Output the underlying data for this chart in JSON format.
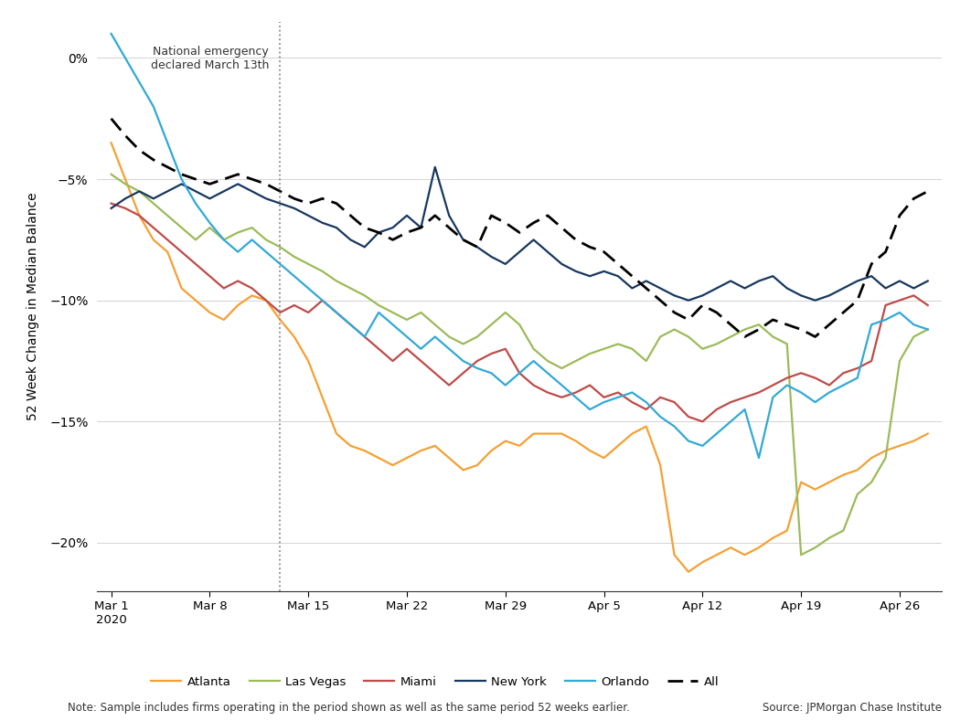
{
  "ylabel": "52 Week Change in Median Balance",
  "annotation": "National emergency\ndeclared March 13th",
  "note": "Note: Sample includes firms operating in the period shown as well as the same period 52 weeks earlier.",
  "source": "Source: JPMorgan Chase Institute",
  "ylim": [
    -22,
    1.5
  ],
  "yticks": [
    0,
    -5,
    -10,
    -15,
    -20
  ],
  "yticklabels": [
    "0%",
    "−5%",
    "−10%",
    "−15%",
    "−20%"
  ],
  "colors": {
    "Atlanta": "#F5A033",
    "Las Vegas": "#9BBB59",
    "Miami": "#BE4B48",
    "New York": "#17375E",
    "Orlando": "#31A9D5",
    "All": "#000000"
  },
  "series": {
    "Atlanta": [
      -3.5,
      -5.0,
      -6.5,
      -7.5,
      -8.0,
      -9.5,
      -10.0,
      -10.5,
      -10.8,
      -10.2,
      -9.8,
      -10.0,
      -10.8,
      -11.5,
      -12.5,
      -14.0,
      -15.5,
      -16.0,
      -16.2,
      -16.5,
      -16.8,
      -16.5,
      -16.2,
      -16.0,
      -16.5,
      -17.0,
      -16.8,
      -16.2,
      -15.8,
      -16.0,
      -15.5,
      -15.5,
      -15.5,
      -15.8,
      -16.2,
      -16.5,
      -16.0,
      -15.5,
      -15.2,
      -16.8,
      -20.5,
      -21.2,
      -20.8,
      -20.5,
      -20.2,
      -20.5,
      -20.2,
      -19.8,
      -19.5,
      -17.5,
      -17.8,
      -17.5,
      -17.2,
      -17.0,
      -16.5,
      -16.2,
      -16.0,
      -15.8,
      -15.5
    ],
    "Las Vegas": [
      -4.8,
      -5.2,
      -5.5,
      -6.0,
      -6.5,
      -7.0,
      -7.5,
      -7.0,
      -7.5,
      -7.2,
      -7.0,
      -7.5,
      -7.8,
      -8.2,
      -8.5,
      -8.8,
      -9.2,
      -9.5,
      -9.8,
      -10.2,
      -10.5,
      -10.8,
      -10.5,
      -11.0,
      -11.5,
      -11.8,
      -11.5,
      -11.0,
      -10.5,
      -11.0,
      -12.0,
      -12.5,
      -12.8,
      -12.5,
      -12.2,
      -12.0,
      -11.8,
      -12.0,
      -12.5,
      -11.5,
      -11.2,
      -11.5,
      -12.0,
      -11.8,
      -11.5,
      -11.2,
      -11.0,
      -11.5,
      -11.8,
      -20.5,
      -20.2,
      -19.8,
      -19.5,
      -18.0,
      -17.5,
      -16.5,
      -12.5,
      -11.5,
      -11.2
    ],
    "Miami": [
      -6.0,
      -6.2,
      -6.5,
      -7.0,
      -7.5,
      -8.0,
      -8.5,
      -9.0,
      -9.5,
      -9.2,
      -9.5,
      -10.0,
      -10.5,
      -10.2,
      -10.5,
      -10.0,
      -10.5,
      -11.0,
      -11.5,
      -12.0,
      -12.5,
      -12.0,
      -12.5,
      -13.0,
      -13.5,
      -13.0,
      -12.5,
      -12.2,
      -12.0,
      -13.0,
      -13.5,
      -13.8,
      -14.0,
      -13.8,
      -13.5,
      -14.0,
      -13.8,
      -14.2,
      -14.5,
      -14.0,
      -14.2,
      -14.8,
      -15.0,
      -14.5,
      -14.2,
      -14.0,
      -13.8,
      -13.5,
      -13.2,
      -13.0,
      -13.2,
      -13.5,
      -13.0,
      -12.8,
      -12.5,
      -10.2,
      -10.0,
      -9.8,
      -10.2
    ],
    "New York": [
      -6.2,
      -5.8,
      -5.5,
      -5.8,
      -5.5,
      -5.2,
      -5.5,
      -5.8,
      -5.5,
      -5.2,
      -5.5,
      -5.8,
      -6.0,
      -6.2,
      -6.5,
      -6.8,
      -7.0,
      -7.5,
      -7.8,
      -7.2,
      -7.0,
      -6.5,
      -7.0,
      -4.5,
      -6.5,
      -7.5,
      -7.8,
      -8.2,
      -8.5,
      -8.0,
      -7.5,
      -8.0,
      -8.5,
      -8.8,
      -9.0,
      -8.8,
      -9.0,
      -9.5,
      -9.2,
      -9.5,
      -9.8,
      -10.0,
      -9.8,
      -9.5,
      -9.2,
      -9.5,
      -9.2,
      -9.0,
      -9.5,
      -9.8,
      -10.0,
      -9.8,
      -9.5,
      -9.2,
      -9.0,
      -9.5,
      -9.2,
      -9.5,
      -9.2
    ],
    "Orlando": [
      1.0,
      0.0,
      -1.0,
      -2.0,
      -3.5,
      -5.0,
      -6.0,
      -6.8,
      -7.5,
      -8.0,
      -7.5,
      -8.0,
      -8.5,
      -9.0,
      -9.5,
      -10.0,
      -10.5,
      -11.0,
      -11.5,
      -10.5,
      -11.0,
      -11.5,
      -12.0,
      -11.5,
      -12.0,
      -12.5,
      -12.8,
      -13.0,
      -13.5,
      -13.0,
      -12.5,
      -13.0,
      -13.5,
      -14.0,
      -14.5,
      -14.2,
      -14.0,
      -13.8,
      -14.2,
      -14.8,
      -15.2,
      -15.8,
      -16.0,
      -15.5,
      -15.0,
      -14.5,
      -16.5,
      -14.0,
      -13.5,
      -13.8,
      -14.2,
      -13.8,
      -13.5,
      -13.2,
      -11.0,
      -10.8,
      -10.5,
      -11.0,
      -11.2
    ],
    "All": [
      -2.5,
      -3.2,
      -3.8,
      -4.2,
      -4.5,
      -4.8,
      -5.0,
      -5.2,
      -5.0,
      -4.8,
      -5.0,
      -5.2,
      -5.5,
      -5.8,
      -6.0,
      -5.8,
      -6.0,
      -6.5,
      -7.0,
      -7.2,
      -7.5,
      -7.2,
      -7.0,
      -6.5,
      -7.0,
      -7.5,
      -7.8,
      -6.5,
      -6.8,
      -7.2,
      -6.8,
      -6.5,
      -7.0,
      -7.5,
      -7.8,
      -8.0,
      -8.5,
      -9.0,
      -9.5,
      -10.0,
      -10.5,
      -10.8,
      -10.2,
      -10.5,
      -11.0,
      -11.5,
      -11.2,
      -10.8,
      -11.0,
      -11.2,
      -11.5,
      -11.0,
      -10.5,
      -10.0,
      -8.5,
      -8.0,
      -6.5,
      -5.8,
      -5.5
    ]
  }
}
